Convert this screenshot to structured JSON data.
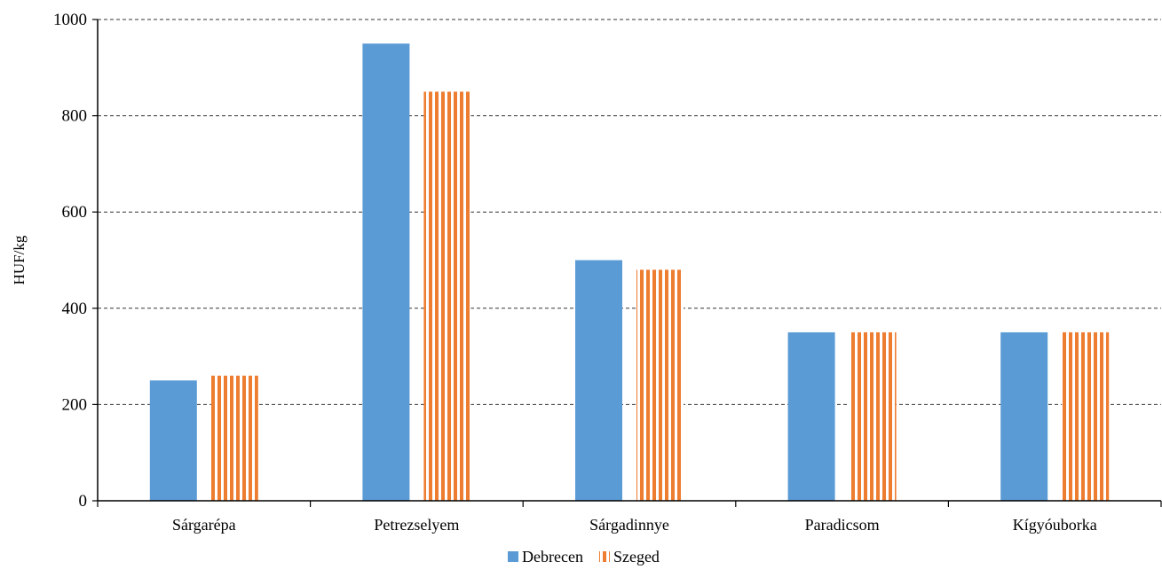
{
  "chart_data": {
    "type": "bar",
    "title": "",
    "xlabel": "",
    "ylabel": "HUF/kg",
    "ylim": [
      0,
      1000
    ],
    "yticks": [
      0,
      200,
      400,
      600,
      800,
      1000
    ],
    "grid": "horizontal dashed",
    "legend_position": "bottom-center",
    "categories": [
      "Sárgarépa",
      "Petrezselyem",
      "Sárgadinnye",
      "Paradicsom",
      "Kígyóuborka"
    ],
    "series": [
      {
        "name": "Debrecen",
        "values": [
          250,
          950,
          500,
          350,
          350
        ],
        "color": "#5b9bd5",
        "pattern": "solid"
      },
      {
        "name": "Szeged",
        "values": [
          260,
          850,
          480,
          350,
          350
        ],
        "color": "#ed7d31",
        "pattern": "vertical-stripes"
      }
    ]
  }
}
